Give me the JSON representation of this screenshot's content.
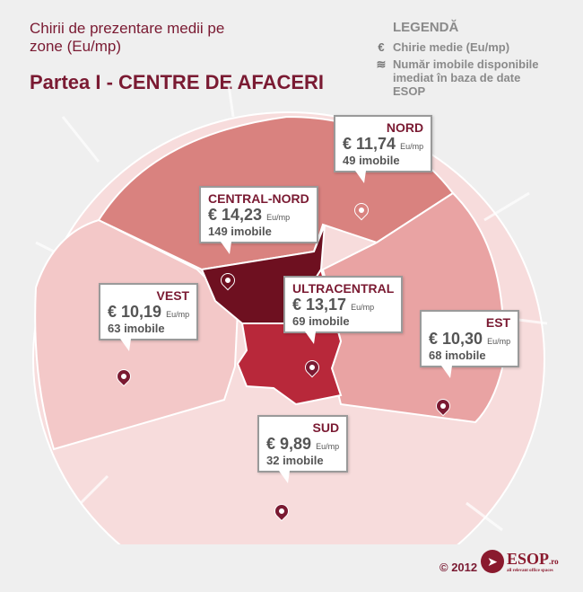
{
  "header": {
    "subtitle": "Chirii de prezentare medii pe zone (Eu/mp)",
    "title": "Partea I - CENTRE DE AFACERI"
  },
  "legend": {
    "title": "LEGENDĂ",
    "items": [
      {
        "icon": "euro-icon",
        "glyph": "€",
        "label": "Chirie medie (Eu/mp)"
      },
      {
        "icon": "stack-icon",
        "glyph": "≋",
        "label": "Număr imobile disponibile imediat în baza de date ESOP"
      }
    ]
  },
  "colors": {
    "accent": "#7a1a32",
    "central_nord": "#6e1020",
    "ultracentral": "#b8283a",
    "nord": "#d9827f",
    "est": "#e9a3a3",
    "vest": "#f3c8c8",
    "sud": "#f7dcdc"
  },
  "zones": [
    {
      "name": "NORD",
      "price": "€ 11,74",
      "unit": "Eu/mp",
      "count": "49 imobile"
    },
    {
      "name": "CENTRAL-NORD",
      "price": "€ 14,23",
      "unit": "Eu/mp",
      "count": "149 imobile"
    },
    {
      "name": "VEST",
      "price": "€ 10,19",
      "unit": "Eu/mp",
      "count": "63 imobile"
    },
    {
      "name": "ULTRACENTRAL",
      "price": "€ 13,17",
      "unit": "Eu/mp",
      "count": "69 imobile"
    },
    {
      "name": "EST",
      "price": "€ 10,30",
      "unit": "Eu/mp",
      "count": "68 imobile"
    },
    {
      "name": "SUD",
      "price": "€ 9,89",
      "unit": "Eu/mp",
      "count": "32 imobile"
    }
  ],
  "footer": {
    "copyright": "© 2012",
    "logo": "ESOP",
    "logo_suffix": ".ro",
    "tagline": "all relevant office spaces"
  }
}
